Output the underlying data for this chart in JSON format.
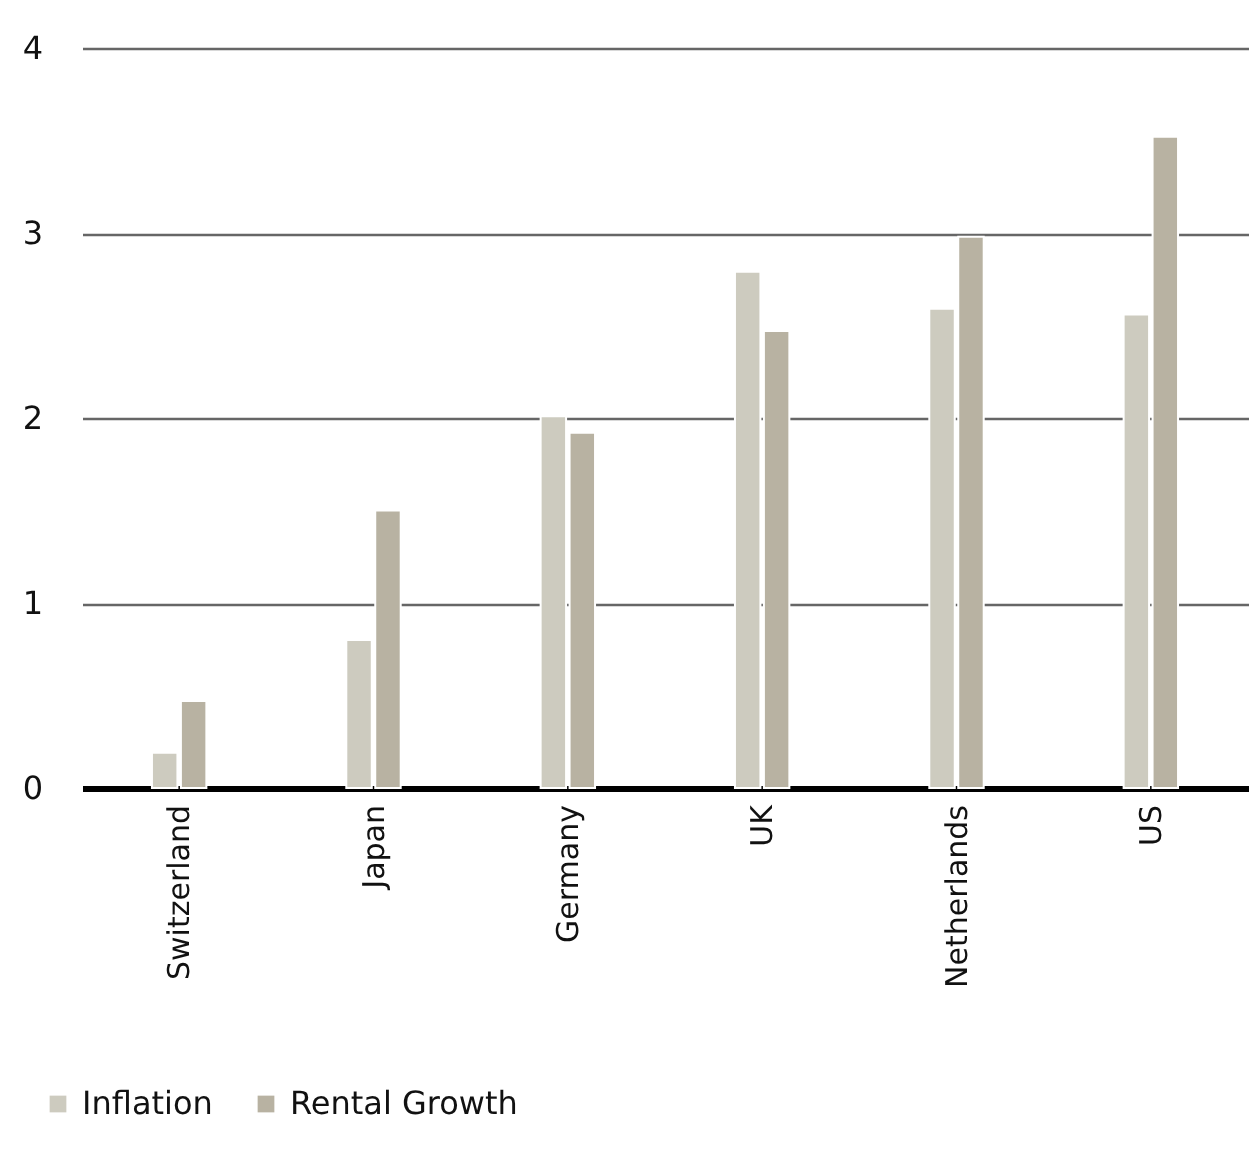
{
  "chart_data": {
    "type": "bar",
    "categories": [
      "Switzerland",
      "Japan",
      "Germany",
      "UK",
      "Netherlands",
      "US"
    ],
    "series": [
      {
        "name": "Inflation",
        "color": "#cdcbbf",
        "values": [
          0.19,
          0.8,
          2.01,
          2.79,
          2.59,
          2.56
        ]
      },
      {
        "name": "Rental Growth",
        "color": "#b8b2a2",
        "values": [
          0.47,
          1.5,
          1.92,
          2.47,
          2.98,
          3.52
        ]
      }
    ],
    "ylim": [
      0,
      4
    ],
    "yticks": [
      0,
      1,
      2,
      3,
      4
    ],
    "grid": "y",
    "legend": "bottom left"
  }
}
